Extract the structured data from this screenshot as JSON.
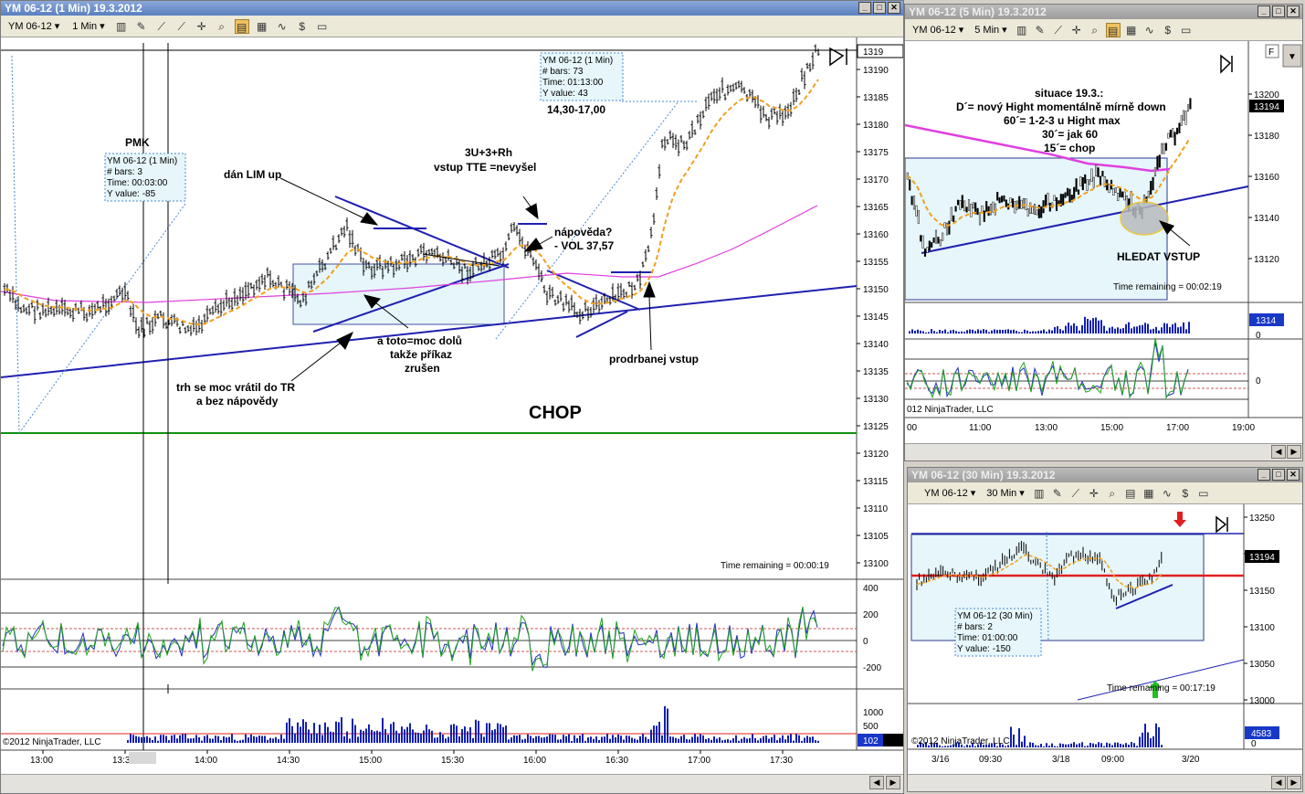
{
  "main": {
    "title": "YM 06-12 (1 Min)  19.3.2012",
    "instrument": "YM 06-12",
    "interval": "1 Min",
    "price_ticks": [
      "13190",
      "13185",
      "13180",
      "13175",
      "13170",
      "13165",
      "13160",
      "13155",
      "13150",
      "13145",
      "13140",
      "13135",
      "13130",
      "13125",
      "13120",
      "13115",
      "13110",
      "13105",
      "13100"
    ],
    "current_price": "1319",
    "time_ticks": [
      "13:00",
      "13:30",
      "14:00",
      "14:30",
      "15:00",
      "15:30",
      "16:00",
      "16:30",
      "17:00",
      "17:30"
    ],
    "cursor_time": "13:36",
    "time_remaining": "Time remaining = 00:00:19",
    "osc_ticks": [
      "400",
      "200",
      "0",
      "-200"
    ],
    "vol_ticks": [
      "1000",
      "500"
    ],
    "vol_current": "102",
    "copyright": "©2012 NinjaTrader, LLC",
    "annotations": {
      "pmk": "PMK",
      "lim": "dán LIM up",
      "u3": "3U+3+Rh",
      "u3b": "vstup TTE =nevyšel",
      "hint1": "nápověda?",
      "hint2": "- VOL 37,57",
      "range": "14,30-17,00",
      "toto1": "a toto=moc dolů",
      "toto2": "takže příkaz",
      "toto3": "zrušen",
      "trh1": "trh se moc vrátil do TR",
      "trh2": "a bez nápovědy",
      "prod": "prodrbanej vstup",
      "chop": "CHOP"
    },
    "info1": {
      "l1": "YM 06-12 (1 Min)",
      "l2": "# bars:   3",
      "l3": "Time:      00:03:00",
      "l4": "Y value:  -85"
    },
    "info2": {
      "l1": "YM 06-12 (1 Min)",
      "l2": "# bars:   73",
      "l3": "Time:     01:13:00",
      "l4": "Y value:  43"
    }
  },
  "five": {
    "title": "YM 06-12 (5 Min)  19.3.2012",
    "instrument": "YM 06-12",
    "interval": "5 Min",
    "price_ticks": [
      "13200",
      "13180",
      "13160",
      "13140",
      "13120"
    ],
    "current_price": "13194",
    "time_ticks": [
      "00",
      "11:00",
      "13:00",
      "15:00",
      "17:00",
      "19:00"
    ],
    "vol_current": "1314",
    "vol_zero": "0",
    "osc_zero": "0",
    "copyright": "012 NinjaTrader, LLC",
    "time_remaining": "Time remaining = 00:02:19",
    "notes": [
      "situace 19.3.:",
      "D´= nový Hight momentálně mírně down",
      "60´=  1-2-3 u Hight max",
      "30´= jak 60",
      "15´= chop"
    ],
    "hledat": "HLEDAT VSTUP",
    "f_btn": "F"
  },
  "thirty": {
    "title": "YM 06-12 (30 Min)  19.3.2012",
    "instrument": "YM 06-12",
    "interval": "30 Min",
    "price_ticks": [
      "13250",
      "13200",
      "13150",
      "13100",
      "13050",
      "13000"
    ],
    "current_price": "13194",
    "time_ticks": [
      "3/16",
      "09:30",
      "3/18",
      "09:00",
      "3/20"
    ],
    "vol_current": "4583",
    "vol_zero": "0",
    "copyright": "©2012 NinjaTrader, LLC",
    "time_remaining": "Time remaining = 00:17:19",
    "info": {
      "l1": "YM 06-12 (30 Min)",
      "l2": "# bars:   2",
      "l3": "Time:     01:00:00",
      "l4": "Y value:  -150"
    }
  },
  "colors": {
    "ma_orange": "#f0a020",
    "ma_magenta": "#e040e0",
    "trend_blue": "#2020b0",
    "green_line": "#109010",
    "red_line": "#e02020",
    "box_fill": "#e6f6fa"
  }
}
